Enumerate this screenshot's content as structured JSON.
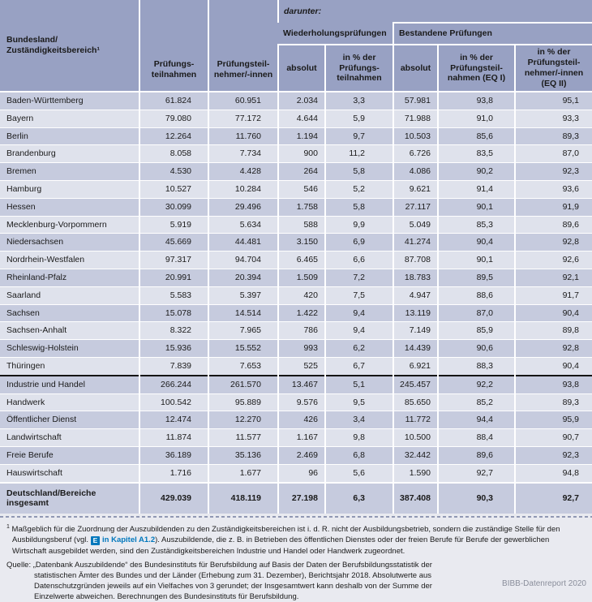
{
  "table": {
    "header": {
      "bundesland": "Bundesland/\nZuständigkeitsbereich¹",
      "teilnahmen": "Prüfungs-\nteilnahmen",
      "teilnehmer": "Prüfungsteil-\nnehmer/-innen",
      "darunter": "darunter:",
      "wiederholung": "Wiederholungsprüfungen",
      "bestanden": "Bestandene Prüfungen",
      "sub": {
        "wh_abs": "absolut",
        "wh_pct": "in % der\nPrüfungs-\nteilnahmen",
        "b_abs": "absolut",
        "b_eq1": "in % der\nPrüfungsteil-\nnahmen (EQ I)",
        "b_eq2": "in % der\nPrüfungsteil-\nnehmer/-innen\n(EQ II)"
      }
    },
    "rows": [
      {
        "label": "Baden-Württemberg",
        "group": "land",
        "values": [
          "61.824",
          "60.951",
          "2.034",
          "3,3",
          "57.981",
          "93,8",
          "95,1"
        ]
      },
      {
        "label": "Bayern",
        "group": "land",
        "values": [
          "79.080",
          "77.172",
          "4.644",
          "5,9",
          "71.988",
          "91,0",
          "93,3"
        ]
      },
      {
        "label": "Berlin",
        "group": "land",
        "values": [
          "12.264",
          "11.760",
          "1.194",
          "9,7",
          "10.503",
          "85,6",
          "89,3"
        ]
      },
      {
        "label": "Brandenburg",
        "group": "land",
        "values": [
          "8.058",
          "7.734",
          "900",
          "11,2",
          "6.726",
          "83,5",
          "87,0"
        ]
      },
      {
        "label": "Bremen",
        "group": "land",
        "values": [
          "4.530",
          "4.428",
          "264",
          "5,8",
          "4.086",
          "90,2",
          "92,3"
        ]
      },
      {
        "label": "Hamburg",
        "group": "land",
        "values": [
          "10.527",
          "10.284",
          "546",
          "5,2",
          "9.621",
          "91,4",
          "93,6"
        ]
      },
      {
        "label": "Hessen",
        "group": "land",
        "values": [
          "30.099",
          "29.496",
          "1.758",
          "5,8",
          "27.117",
          "90,1",
          "91,9"
        ]
      },
      {
        "label": "Mecklenburg-Vorpommern",
        "group": "land",
        "values": [
          "5.919",
          "5.634",
          "588",
          "9,9",
          "5.049",
          "85,3",
          "89,6"
        ]
      },
      {
        "label": "Niedersachsen",
        "group": "land",
        "values": [
          "45.669",
          "44.481",
          "3.150",
          "6,9",
          "41.274",
          "90,4",
          "92,8"
        ]
      },
      {
        "label": "Nordrhein-Westfalen",
        "group": "land",
        "values": [
          "97.317",
          "94.704",
          "6.465",
          "6,6",
          "87.708",
          "90,1",
          "92,6"
        ]
      },
      {
        "label": "Rheinland-Pfalz",
        "group": "land",
        "values": [
          "20.991",
          "20.394",
          "1.509",
          "7,2",
          "18.783",
          "89,5",
          "92,1"
        ]
      },
      {
        "label": "Saarland",
        "group": "land",
        "values": [
          "5.583",
          "5.397",
          "420",
          "7,5",
          "4.947",
          "88,6",
          "91,7"
        ]
      },
      {
        "label": "Sachsen",
        "group": "land",
        "values": [
          "15.078",
          "14.514",
          "1.422",
          "9,4",
          "13.119",
          "87,0",
          "90,4"
        ]
      },
      {
        "label": "Sachsen-Anhalt",
        "group": "land",
        "values": [
          "8.322",
          "7.965",
          "786",
          "9,4",
          "7.149",
          "85,9",
          "89,8"
        ]
      },
      {
        "label": "Schleswig-Holstein",
        "group": "land",
        "values": [
          "15.936",
          "15.552",
          "993",
          "6,2",
          "14.439",
          "90,6",
          "92,8"
        ]
      },
      {
        "label": "Thüringen",
        "group": "land",
        "values": [
          "7.839",
          "7.653",
          "525",
          "6,7",
          "6.921",
          "88,3",
          "90,4"
        ]
      },
      {
        "label": "Industrie und Handel",
        "group": "bereich",
        "separator_above": true,
        "values": [
          "266.244",
          "261.570",
          "13.467",
          "5,1",
          "245.457",
          "92,2",
          "93,8"
        ]
      },
      {
        "label": "Handwerk",
        "group": "bereich",
        "values": [
          "100.542",
          "95.889",
          "9.576",
          "9,5",
          "85.650",
          "85,2",
          "89,3"
        ]
      },
      {
        "label": "Öffentlicher Dienst",
        "group": "bereich",
        "values": [
          "12.474",
          "12.270",
          "426",
          "3,4",
          "11.772",
          "94,4",
          "95,9"
        ]
      },
      {
        "label": "Landwirtschaft",
        "group": "bereich",
        "values": [
          "11.874",
          "11.577",
          "1.167",
          "9,8",
          "10.500",
          "88,4",
          "90,7"
        ]
      },
      {
        "label": "Freie Berufe",
        "group": "bereich",
        "values": [
          "36.189",
          "35.136",
          "2.469",
          "6,8",
          "32.442",
          "89,6",
          "92,3"
        ]
      },
      {
        "label": "Hauswirtschaft",
        "group": "bereich",
        "values": [
          "1.716",
          "1.677",
          "96",
          "5,6",
          "1.590",
          "92,7",
          "94,8"
        ]
      },
      {
        "label": "Deutschland/Bereiche insgesamt",
        "group": "total",
        "values": [
          "429.039",
          "418.119",
          "27.198",
          "6,3",
          "387.408",
          "90,3",
          "92,7"
        ]
      }
    ]
  },
  "footnotes": {
    "note1": {
      "marker": "1",
      "text_before_link": "Maßgeblich für die Zuordnung der Auszubildenden zu den Zuständigkeitsbereichen ist i. d. R. nicht der Ausbildungsbetrieb, sondern die zuständige Stelle für den Ausbildungsberuf (vgl.",
      "icon_label": "E",
      "link_label": "in Kapitel A1.2",
      "text_after_link": "). Auszubildende, die z. B. in Betrieben des öffentlichen Dienstes oder der freien Berufe für Berufe der gewerblichen Wirtschaft ausgebildet werden, sind den Zuständigkeitsbereichen Industrie und Handel oder Handwerk zugeordnet."
    },
    "source": {
      "label": "Quelle:",
      "text": "„Datenbank Auszubildende“ des Bundesinstituts für Berufsbildung auf Basis der Daten der Berufsbildungsstatistik der statistischen Ämter des Bundes und der Länder (Erhebung zum 31. Dezember), Berichtsjahr 2018. Absolutwerte aus Datenschutzgründen jeweils auf ein Vielfaches von 3 gerundet; der Insgesamtwert kann deshalb von der Summe der Einzelwerte abweichen. Berechnungen des Bundesinstituts für Berufsbildung."
    }
  },
  "report_label": "BIBB-Datenreport 2020",
  "colors": {
    "header_bg": "#98a1c3",
    "row_dark": "#c6cbde",
    "row_light": "#dfe2ec",
    "page_bg": "#e9eaf0",
    "accent_blue": "#0077bc",
    "separator_dark": "#141414",
    "text": "#1a1a1a"
  }
}
